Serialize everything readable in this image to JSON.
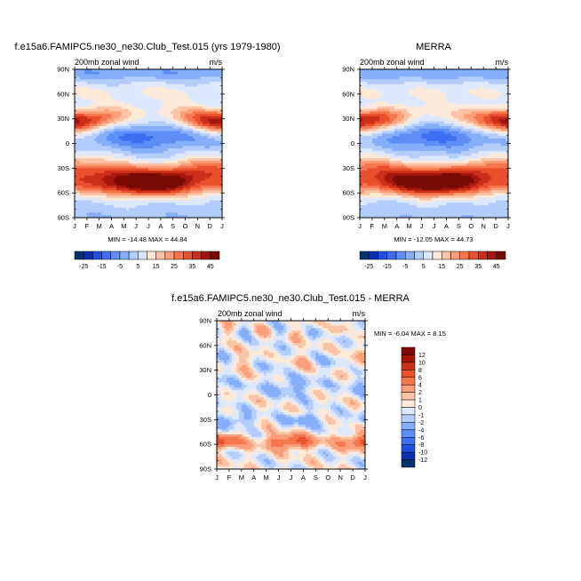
{
  "chart_data": [
    {
      "type": "heatmap",
      "panel": "model",
      "title": "f.e15a6.FAMIPC5.ne30_ne30.Club_Test.015 (yrs 1979-1980)",
      "left_label": "200mb zonal wind",
      "units": "m/s",
      "x_ticks": [
        "J",
        "F",
        "M",
        "A",
        "M",
        "J",
        "J",
        "A",
        "S",
        "O",
        "N",
        "D",
        "J"
      ],
      "y_ticks": [
        "90N",
        "60N",
        "30N",
        "0",
        "30S",
        "60S",
        "90S"
      ],
      "y_lim": [
        -90,
        90
      ],
      "stats_text": "MIN = -14.48 MAX = 44.84",
      "min": -14.48,
      "max": 44.84
    },
    {
      "type": "heatmap",
      "panel": "obs",
      "title": "MERRA",
      "left_label": "200mb zonal wind",
      "units": "m/s",
      "x_ticks": [
        "J",
        "F",
        "M",
        "A",
        "M",
        "J",
        "J",
        "A",
        "S",
        "O",
        "N",
        "D",
        "J"
      ],
      "y_ticks": [
        "90N",
        "60N",
        "30N",
        "0",
        "30S",
        "60S",
        "90S"
      ],
      "y_lim": [
        -90,
        90
      ],
      "stats_text": "MIN = -12.05 MAX = 44.73",
      "min": -12.05,
      "max": 44.73
    },
    {
      "type": "heatmap",
      "panel": "diff",
      "title": "f.e15a6.FAMIPC5.ne30_ne30.Club_Test.015 - MERRA",
      "left_label": "200mb zonal wind",
      "units": "m/s",
      "x_ticks": [
        "J",
        "F",
        "M",
        "A",
        "M",
        "J",
        "J",
        "A",
        "S",
        "O",
        "N",
        "D",
        "J"
      ],
      "y_ticks": [
        "90N",
        "60N",
        "30N",
        "0",
        "30S",
        "60S",
        "90S"
      ],
      "y_lim": [
        -90,
        90
      ],
      "stats_text": "MIN =  -6.04 MAX =   8.15",
      "min": -6.04,
      "max": 8.15
    }
  ],
  "colorbar_main": {
    "labels": [
      "-25",
      "-15",
      "-5",
      "5",
      "15",
      "25",
      "35",
      "45"
    ],
    "levels": [
      -25,
      -20,
      -15,
      -10,
      -5,
      0,
      5,
      10,
      15,
      20,
      25,
      30,
      35,
      40,
      45
    ],
    "colors": [
      "#08306b",
      "#0a2fb0",
      "#1f4fe0",
      "#3d6ef0",
      "#5f8df7",
      "#86aefb",
      "#b3cdfd",
      "#dde8fe",
      "#fde9d8",
      "#fcc4a6",
      "#fb9e7a",
      "#f6764e",
      "#e8512d",
      "#cc2f19",
      "#a5170d",
      "#7a0a05"
    ]
  },
  "colorbar_diff": {
    "labels": [
      "12",
      "10",
      "8",
      "6",
      "4",
      "2",
      "1",
      "0",
      "-1",
      "-2",
      "-4",
      "-6",
      "-8",
      "-10",
      "-12"
    ],
    "colors": [
      "#7a0a05",
      "#a5170d",
      "#cc2f19",
      "#e8512d",
      "#f6764e",
      "#fb9e7a",
      "#fcc4a6",
      "#fde9d8",
      "#dde8fe",
      "#b3cdfd",
      "#86aefb",
      "#5f8df7",
      "#3d6ef0",
      "#1f4fe0",
      "#0a2fb0",
      "#08306b"
    ]
  }
}
